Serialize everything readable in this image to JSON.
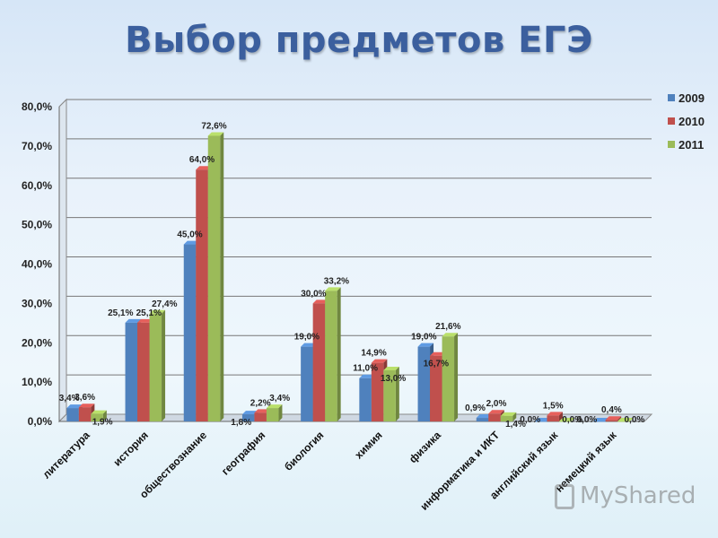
{
  "slide": {
    "title": "Выбор предметов ЕГЭ",
    "watermark": "MyShared",
    "watermark_icon": "presentation-icon"
  },
  "chart_data": {
    "type": "bar",
    "title": "Выбор предметов ЕГЭ",
    "xlabel": "",
    "ylabel": "",
    "ylim": [
      0,
      80
    ],
    "yticks": [
      "0,0%",
      "10,0%",
      "20,0%",
      "30,0%",
      "40,0%",
      "50,0%",
      "60,0%",
      "70,0%",
      "80,0%"
    ],
    "grid": true,
    "legend": "top-right",
    "categories": [
      "литература",
      "история",
      "обществознание",
      "география",
      "биология",
      "химия",
      "физика",
      "информатика и ИКТ",
      "английский язык",
      "немецкий язык"
    ],
    "series": [
      {
        "name": "2009",
        "color": "#4f81bd",
        "values": [
          3.4,
          25.1,
          45.0,
          1.8,
          19.0,
          11.0,
          19.0,
          0.9,
          0.0,
          0.0
        ],
        "labels": [
          "3,4%",
          "25,1%",
          "45,0%",
          "1,8%",
          "19,0%",
          "11,0%",
          "19,0%",
          "0,9%",
          "0,0%",
          "0,0%"
        ]
      },
      {
        "name": "2010",
        "color": "#c0504d",
        "values": [
          3.6,
          25.1,
          64.0,
          2.2,
          30.0,
          14.9,
          16.7,
          2.0,
          1.5,
          0.4
        ],
        "labels": [
          "3,6%",
          "25,1%",
          "64,0%",
          "2,2%",
          "30,0%",
          "14,9%",
          "16,7%",
          "2,0%",
          "1,5%",
          "0,4%"
        ]
      },
      {
        "name": "2011",
        "color": "#9bbb59",
        "values": [
          1.9,
          27.4,
          72.6,
          3.4,
          33.2,
          13.0,
          21.6,
          1.4,
          0.0,
          0.0
        ],
        "labels": [
          "1,9%",
          "27,4%",
          "72,6%",
          "3,4%",
          "33,2%",
          "13,0%",
          "21,6%",
          "1,4%",
          "0,0%",
          "0,0%"
        ]
      }
    ]
  }
}
